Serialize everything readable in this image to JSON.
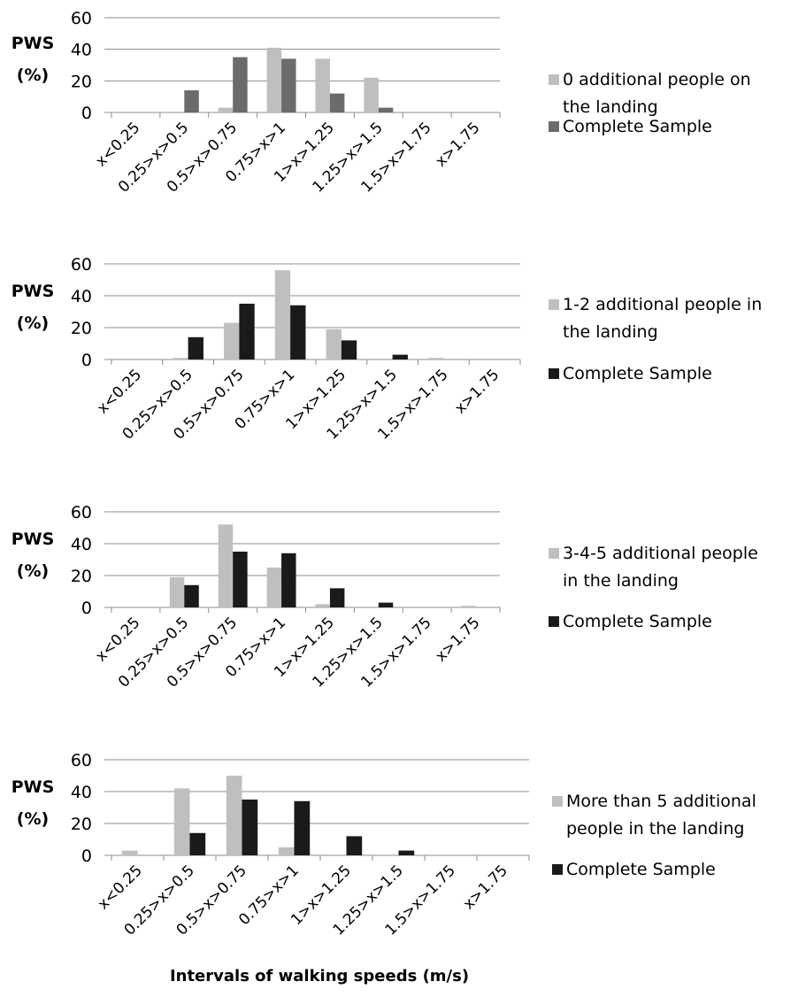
{
  "chart_data": [
    {
      "type": "bar",
      "ylabel": "PWS (%)",
      "ylim": [
        0,
        60
      ],
      "yticks": [
        0,
        20,
        40,
        60
      ],
      "grid": true,
      "legend_position": "right",
      "categories": [
        "x<0.25",
        "0.25>x>0.5",
        "0.5>x>0.75",
        "0.75>x>1",
        "1>x>1.25",
        "1.25>x>1.5",
        "1.5>x>1.75",
        "x>1.75"
      ],
      "series": [
        {
          "name": "0 additional people on the landing",
          "color": "#bfbfbf",
          "values": [
            0,
            0,
            3,
            41,
            34,
            22,
            0,
            0
          ]
        },
        {
          "name": "Complete Sample",
          "color": "#6b6b6b",
          "values": [
            0,
            14,
            35,
            34,
            12,
            3,
            0,
            0
          ]
        }
      ]
    },
    {
      "type": "bar",
      "ylabel": "PWS (%)",
      "ylim": [
        0,
        60
      ],
      "yticks": [
        0,
        20,
        40,
        60
      ],
      "grid": true,
      "legend_position": "right",
      "categories": [
        "x<0.25",
        "0.25>x>0.5",
        "0.5>x>0.75",
        "0.75>x>1",
        "1>x>1.25",
        "1.25>x>1.5",
        "1.5>x>1.75",
        "x>1.75"
      ],
      "series": [
        {
          "name": "1-2 additional people in the landing",
          "color": "#bfbfbf",
          "values": [
            0,
            1,
            23,
            56,
            19,
            0,
            1,
            0
          ]
        },
        {
          "name": "Complete Sample",
          "color": "#1a1a1a",
          "values": [
            0,
            14,
            35,
            34,
            12,
            3,
            0,
            0
          ]
        }
      ]
    },
    {
      "type": "bar",
      "ylabel": "PWS (%)",
      "ylim": [
        0,
        60
      ],
      "yticks": [
        0,
        20,
        40,
        60
      ],
      "grid": true,
      "legend_position": "right",
      "categories": [
        "x<0.25",
        "0.25>x>0.5",
        "0.5>x>0.75",
        "0.75>x>1",
        "1>x>1.25",
        "1.25>x>1.5",
        "1.5>x>1.75",
        "x>1.75"
      ],
      "series": [
        {
          "name": "3-4-5 additional people in the landing",
          "color": "#bfbfbf",
          "values": [
            0,
            19,
            52,
            25,
            2,
            0,
            0,
            1
          ]
        },
        {
          "name": "Complete Sample",
          "color": "#1a1a1a",
          "values": [
            0,
            14,
            35,
            34,
            12,
            3,
            0,
            0
          ]
        }
      ]
    },
    {
      "type": "bar",
      "ylabel": "PWS (%)",
      "ylim": [
        0,
        60
      ],
      "yticks": [
        0,
        20,
        40,
        60
      ],
      "grid": true,
      "legend_position": "right",
      "categories": [
        "x<0.25",
        "0.25>x>0.5",
        "0.5>x>0.75",
        "0.75>x>1",
        "1>x>1.25",
        "1.25>x>1.5",
        "1.5>x>1.75",
        "x>1.75"
      ],
      "series": [
        {
          "name": "More than 5 additional people in the landing",
          "color": "#bfbfbf",
          "values": [
            3,
            42,
            50,
            5,
            0,
            0,
            0,
            0
          ]
        },
        {
          "name": "Complete Sample",
          "color": "#1a1a1a",
          "values": [
            0,
            14,
            35,
            34,
            12,
            3,
            0,
            0
          ]
        }
      ]
    }
  ],
  "xlabel": "Intervals of walking speeds (m/s)",
  "colors": {
    "grid": "#8c8c8c",
    "axis": "#8c8c8c"
  }
}
